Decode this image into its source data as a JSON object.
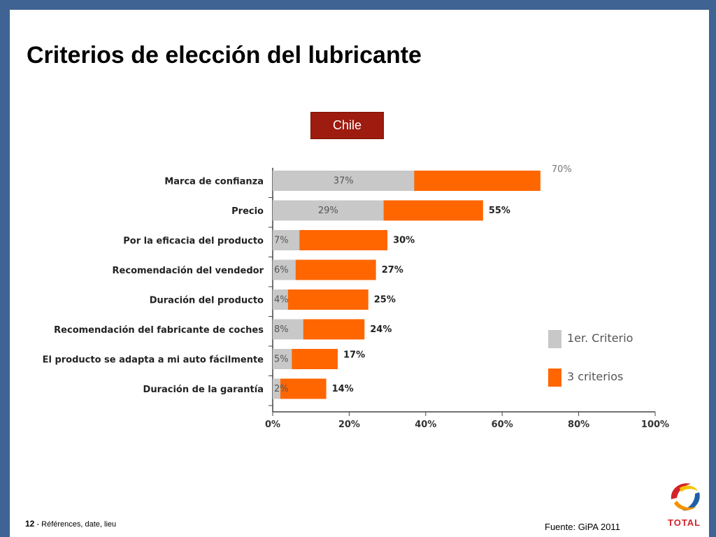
{
  "slide": {
    "title": "Criterios de elección del lubricante",
    "badge": "Chile",
    "page_number": "12",
    "footer_text": " - Références, date, lieu",
    "source": "Fuente: GiPA 2011",
    "brand": "TOTAL"
  },
  "colors": {
    "frame": "#3f6393",
    "badge_bg": "#9e1b0f",
    "first_criterion": "#c8c8c8",
    "three_criteria": "#ff6600"
  },
  "chart_data": {
    "type": "bar",
    "orientation": "horizontal",
    "stacked_overlay": true,
    "categories": [
      "Marca de confianza",
      "Precio",
      "Por la eficacia del producto",
      "Recomendación del vendedor",
      "Duración del producto",
      "Recomendación del fabricante de coches",
      "El producto se adapta  a mi auto fácilmente",
      "Duración de la garantía"
    ],
    "series": [
      {
        "name": "1er. Criterio",
        "values": [
          37,
          29,
          7,
          6,
          4,
          8,
          5,
          2
        ],
        "labels": [
          "37%",
          "29%",
          "7%",
          "6%",
          "4%",
          "8%",
          "5%",
          "2%"
        ],
        "color": "#c8c8c8"
      },
      {
        "name": "3 criterios",
        "values": [
          70,
          55,
          30,
          27,
          25,
          24,
          17,
          14
        ],
        "labels": [
          "70%",
          "55%",
          "30%",
          "27%",
          "25%",
          "24%",
          "17%",
          "14%"
        ],
        "color": "#ff6600"
      }
    ],
    "xlim": [
      0,
      100
    ],
    "x_ticks": [
      "0%",
      "20%",
      "40%",
      "60%",
      "80%",
      "100%"
    ],
    "legend": {
      "placement": "right",
      "items": [
        "1er. Criterio",
        "3 criterios"
      ]
    },
    "grid": false
  }
}
